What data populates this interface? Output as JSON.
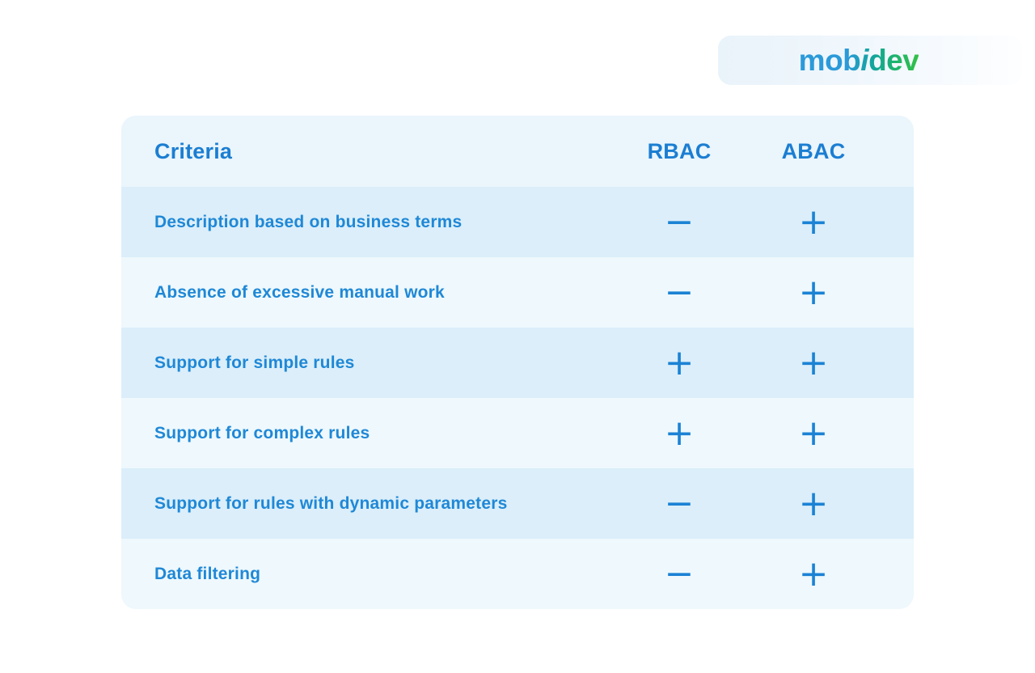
{
  "logo": {
    "part_mob": "mob",
    "part_i": "i",
    "part_dev": "dev"
  },
  "chart_data": {
    "type": "table",
    "columns": [
      "Criteria",
      "RBAC",
      "ABAC"
    ],
    "rows": [
      [
        "Description based on business terms",
        "−",
        "+"
      ],
      [
        "Absence of excessive manual work",
        "−",
        "+"
      ],
      [
        "Support for simple rules",
        "+",
        "+"
      ],
      [
        "Support for complex rules",
        "+",
        "+"
      ],
      [
        "Support for rules with dynamic parameters",
        "−",
        "+"
      ],
      [
        "Data filtering",
        "−",
        "+"
      ]
    ]
  },
  "colors": {
    "accent_text_blue": "#1b7ed2",
    "row_text_blue": "#1f88d6",
    "sign_blue": "#1b82d4",
    "header_bg": "#eaf5fc",
    "row_tint_bg": "#dbeefa",
    "row_plain_bg": "#eef8fd",
    "logo_blue": "#2b9ad9",
    "logo_teal": "#13a59c",
    "logo_green": "#33c148",
    "badge_bg_left": "#e9f3fa",
    "page_bg": "#ffffff"
  }
}
